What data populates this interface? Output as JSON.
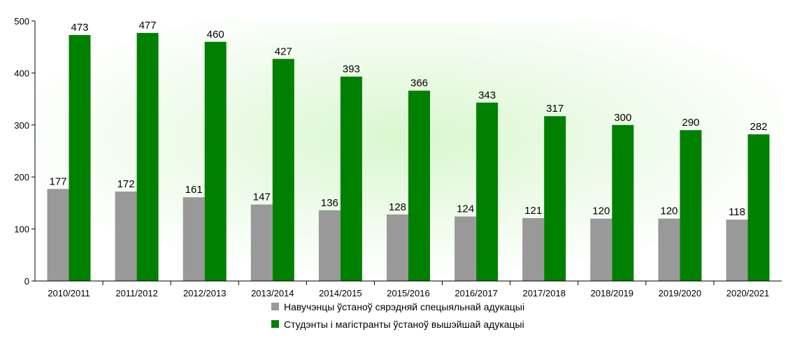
{
  "chart_data": {
    "type": "bar",
    "title": "",
    "xlabel": "",
    "ylabel": "",
    "ylim": [
      0,
      500
    ],
    "yticks": [
      0,
      100,
      200,
      300,
      400,
      500
    ],
    "grid": false,
    "legend_position": "bottom",
    "categories": [
      "2010/2011",
      "2011/2012",
      "2012/2013",
      "2013/2014",
      "2014/2015",
      "2015/2016",
      "2016/2017",
      "2017/2018",
      "2018/2019",
      "2019/2020",
      "2020/2021"
    ],
    "series": [
      {
        "name": "Навучэнцы ўстаноў сярэдняй спецыяльнай адукацыі",
        "color": "#999999",
        "values": [
          177,
          172,
          161,
          147,
          136,
          128,
          124,
          121,
          120,
          120,
          118
        ]
      },
      {
        "name": "Студэнты і магістранты ўстаноў вышэйшай адукацыі",
        "color": "#008000",
        "values": [
          473,
          477,
          460,
          427,
          393,
          366,
          343,
          317,
          300,
          290,
          282
        ]
      }
    ]
  }
}
